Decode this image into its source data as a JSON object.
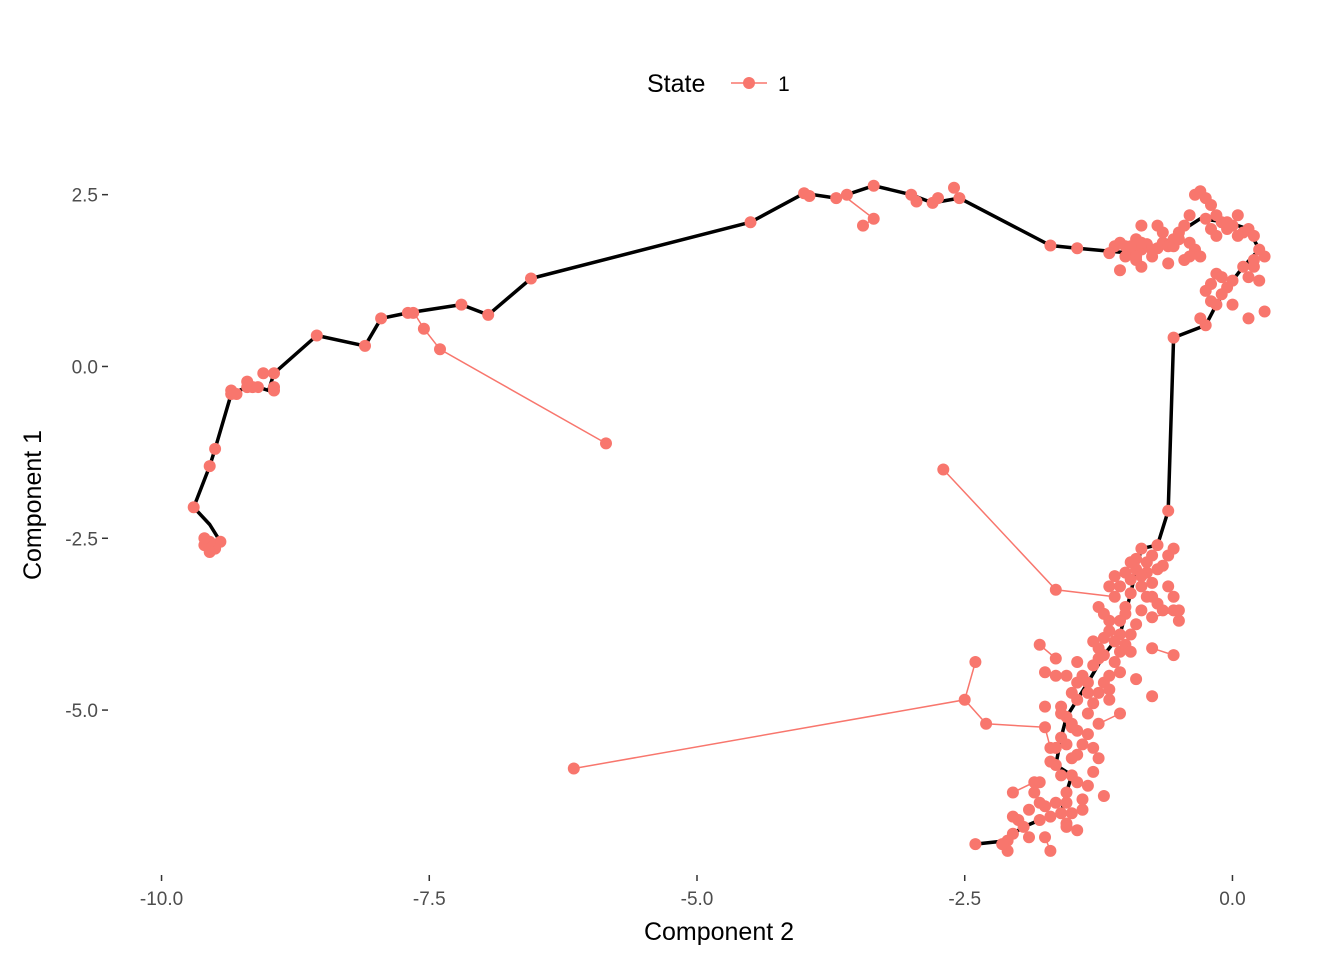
{
  "chart_data": {
    "type": "scatter",
    "xlabel": "Component 2",
    "ylabel": "Component 1",
    "xlim": [
      -10.5,
      0.5
    ],
    "ylim": [
      -7.4,
      3.15
    ],
    "x_ticks": [
      -10.0,
      -7.5,
      -5.0,
      -2.5,
      0.0
    ],
    "x_tick_labels": [
      "-10.0",
      "-7.5",
      "-5.0",
      "-2.5",
      "0.0"
    ],
    "y_ticks": [
      -5.0,
      -2.5,
      0.0,
      2.5
    ],
    "y_tick_labels": [
      "-5.0",
      "-2.5",
      "0.0",
      "2.5"
    ],
    "grid": false,
    "legend": {
      "title": "State",
      "position": "top",
      "entries": [
        {
          "label": "1",
          "color": "#F8766D"
        }
      ]
    },
    "colors": {
      "state_1": "#F8766D",
      "trajectory": "#000000"
    },
    "trajectory": [
      [
        -9.45,
        -2.55
      ],
      [
        -9.55,
        -2.3
      ],
      [
        -9.7,
        -2.05
      ],
      [
        -9.55,
        -1.45
      ],
      [
        -9.5,
        -1.2
      ],
      [
        -9.35,
        -0.4
      ],
      [
        -9.2,
        -0.3
      ],
      [
        -9.1,
        -0.3
      ],
      [
        -9.0,
        -0.35
      ],
      [
        -8.95,
        -0.1
      ],
      [
        -8.55,
        0.45
      ],
      [
        -8.1,
        0.3
      ],
      [
        -7.95,
        0.7
      ],
      [
        -7.7,
        0.78
      ],
      [
        -7.2,
        0.9
      ],
      [
        -6.95,
        0.75
      ],
      [
        -6.55,
        1.28
      ],
      [
        -4.5,
        2.1
      ],
      [
        -4.0,
        2.52
      ],
      [
        -3.7,
        2.45
      ],
      [
        -3.35,
        2.63
      ],
      [
        -3.0,
        2.5
      ],
      [
        -2.8,
        2.38
      ],
      [
        -2.55,
        2.45
      ],
      [
        -1.7,
        1.76
      ],
      [
        -1.45,
        1.72
      ],
      [
        -0.95,
        1.65
      ],
      [
        -0.7,
        1.72
      ],
      [
        -0.5,
        1.95
      ],
      [
        -0.3,
        2.15
      ],
      [
        -0.05,
        2.1
      ],
      [
        0.15,
        2.0
      ],
      [
        0.25,
        1.7
      ],
      [
        0.1,
        1.45
      ],
      [
        -0.05,
        1.15
      ],
      [
        -0.15,
        0.9
      ],
      [
        -0.25,
        0.6
      ],
      [
        -0.55,
        0.42
      ],
      [
        -0.6,
        -2.1
      ],
      [
        -0.7,
        -2.6
      ],
      [
        -0.85,
        -2.65
      ],
      [
        -0.9,
        -2.95
      ],
      [
        -0.95,
        -3.3
      ],
      [
        -1.0,
        -3.6
      ],
      [
        -1.05,
        -3.9
      ],
      [
        -1.2,
        -4.2
      ],
      [
        -1.35,
        -4.6
      ],
      [
        -1.45,
        -4.85
      ],
      [
        -1.55,
        -5.1
      ],
      [
        -1.6,
        -5.4
      ],
      [
        -1.65,
        -5.8
      ],
      [
        -1.5,
        -5.95
      ],
      [
        -1.55,
        -6.2
      ],
      [
        -1.6,
        -6.5
      ],
      [
        -1.8,
        -6.6
      ],
      [
        -1.95,
        -6.7
      ],
      [
        -2.05,
        -6.8
      ],
      [
        -2.1,
        -6.9
      ],
      [
        -2.4,
        -6.95
      ]
    ],
    "branches": [
      [
        [
          -7.65,
          0.8
        ],
        [
          -7.55,
          0.55
        ],
        [
          -7.4,
          0.25
        ],
        [
          -5.85,
          -1.12
        ]
      ],
      [
        [
          -3.6,
          2.45
        ],
        [
          -3.35,
          2.15
        ]
      ],
      [
        [
          -3.35,
          2.15
        ],
        [
          -3.45,
          2.05
        ]
      ],
      [
        [
          -2.7,
          -1.5
        ],
        [
          -1.65,
          -3.25
        ],
        [
          -1.1,
          -3.35
        ]
      ],
      [
        [
          -6.15,
          -5.85
        ],
        [
          -2.5,
          -4.85
        ],
        [
          -2.4,
          -4.3
        ]
      ],
      [
        [
          -2.5,
          -4.85
        ],
        [
          -2.3,
          -5.2
        ],
        [
          -1.75,
          -5.25
        ]
      ],
      [
        [
          -1.75,
          -5.25
        ],
        [
          -1.7,
          -5.55
        ]
      ],
      [
        [
          -1.8,
          -4.05
        ],
        [
          -1.65,
          -4.25
        ]
      ],
      [
        [
          -1.75,
          -4.45
        ],
        [
          -1.55,
          -4.5
        ]
      ],
      [
        [
          -2.05,
          -6.2
        ],
        [
          -1.85,
          -6.05
        ]
      ],
      [
        [
          -1.7,
          -7.05
        ],
        [
          -1.75,
          -6.85
        ]
      ],
      [
        [
          -1.25,
          -5.2
        ],
        [
          -1.05,
          -5.05
        ]
      ],
      [
        [
          -0.75,
          -4.1
        ],
        [
          -0.55,
          -4.2
        ]
      ],
      [
        [
          -0.75,
          -3.65
        ],
        [
          -0.5,
          -3.55
        ]
      ]
    ],
    "points": [
      [
        -9.45,
        -2.55
      ],
      [
        -9.5,
        -2.65
      ],
      [
        -9.55,
        -2.7
      ],
      [
        -9.6,
        -2.6
      ],
      [
        -9.55,
        -2.55
      ],
      [
        -9.6,
        -2.5
      ],
      [
        -9.7,
        -2.05
      ],
      [
        -9.55,
        -1.45
      ],
      [
        -9.5,
        -1.2
      ],
      [
        -9.35,
        -0.4
      ],
      [
        -9.35,
        -0.35
      ],
      [
        -9.3,
        -0.4
      ],
      [
        -9.2,
        -0.3
      ],
      [
        -9.15,
        -0.3
      ],
      [
        -9.1,
        -0.3
      ],
      [
        -9.2,
        -0.22
      ],
      [
        -8.95,
        -0.3
      ],
      [
        -8.95,
        -0.35
      ],
      [
        -9.05,
        -0.1
      ],
      [
        -8.95,
        -0.1
      ],
      [
        -8.55,
        0.45
      ],
      [
        -8.1,
        0.3
      ],
      [
        -7.95,
        0.7
      ],
      [
        -7.7,
        0.78
      ],
      [
        -7.65,
        0.78
      ],
      [
        -7.55,
        0.55
      ],
      [
        -7.4,
        0.25
      ],
      [
        -7.2,
        0.9
      ],
      [
        -6.95,
        0.75
      ],
      [
        -6.55,
        1.28
      ],
      [
        -5.85,
        -1.12
      ],
      [
        -4.5,
        2.1
      ],
      [
        -4.0,
        2.52
      ],
      [
        -3.95,
        2.48
      ],
      [
        -3.7,
        2.45
      ],
      [
        -3.6,
        2.5
      ],
      [
        -3.35,
        2.15
      ],
      [
        -3.45,
        2.05
      ],
      [
        -3.35,
        2.63
      ],
      [
        -3.0,
        2.5
      ],
      [
        -2.95,
        2.4
      ],
      [
        -2.8,
        2.38
      ],
      [
        -2.75,
        2.45
      ],
      [
        -2.6,
        2.6
      ],
      [
        -2.55,
        2.45
      ],
      [
        -1.7,
        1.76
      ],
      [
        -1.45,
        1.72
      ],
      [
        -0.95,
        1.65
      ],
      [
        -0.9,
        1.55
      ],
      [
        -0.85,
        1.7
      ],
      [
        -0.8,
        1.78
      ],
      [
        -0.75,
        1.6
      ],
      [
        -0.7,
        1.72
      ],
      [
        -0.65,
        1.8
      ],
      [
        -0.6,
        1.75
      ],
      [
        -0.55,
        1.85
      ],
      [
        -0.5,
        1.95
      ],
      [
        -0.45,
        2.05
      ],
      [
        -0.4,
        1.8
      ],
      [
        -0.35,
        1.7
      ],
      [
        -0.3,
        1.6
      ],
      [
        -0.25,
        2.15
      ],
      [
        -0.2,
        2.0
      ],
      [
        -0.15,
        1.9
      ],
      [
        -0.1,
        2.1
      ],
      [
        -0.05,
        2.1
      ],
      [
        0.0,
        2.05
      ],
      [
        0.05,
        2.2
      ],
      [
        0.1,
        1.95
      ],
      [
        0.15,
        2.0
      ],
      [
        0.2,
        1.9
      ],
      [
        0.25,
        1.7
      ],
      [
        0.3,
        1.6
      ],
      [
        0.2,
        1.45
      ],
      [
        0.1,
        1.45
      ],
      [
        0.0,
        1.25
      ],
      [
        -0.05,
        1.15
      ],
      [
        -0.1,
        1.05
      ],
      [
        -0.15,
        0.9
      ],
      [
        -0.2,
        1.2
      ],
      [
        -0.15,
        1.35
      ],
      [
        -0.25,
        1.1
      ],
      [
        -0.25,
        0.6
      ],
      [
        -0.3,
        0.7
      ],
      [
        -0.9,
        1.85
      ],
      [
        -0.85,
        2.05
      ],
      [
        -0.7,
        2.05
      ],
      [
        -0.65,
        1.95
      ],
      [
        -0.55,
        1.75
      ],
      [
        -0.5,
        1.85
      ],
      [
        -0.4,
        2.2
      ],
      [
        -0.35,
        2.5
      ],
      [
        -0.3,
        2.55
      ],
      [
        -0.25,
        2.45
      ],
      [
        -0.2,
        2.35
      ],
      [
        -0.15,
        2.2
      ],
      [
        -0.05,
        2.0
      ],
      [
        0.05,
        1.9
      ],
      [
        0.2,
        1.55
      ],
      [
        0.25,
        1.25
      ],
      [
        0.15,
        1.3
      ],
      [
        0.0,
        0.9
      ],
      [
        0.15,
        0.7
      ],
      [
        0.3,
        0.8
      ],
      [
        -0.1,
        1.3
      ],
      [
        -0.2,
        0.95
      ],
      [
        -0.4,
        1.6
      ],
      [
        -0.45,
        1.55
      ],
      [
        -0.6,
        1.5
      ],
      [
        -0.75,
        1.7
      ],
      [
        -0.85,
        1.45
      ],
      [
        -1.0,
        1.6
      ],
      [
        -1.05,
        1.4
      ],
      [
        -1.1,
        1.75
      ],
      [
        -1.15,
        1.65
      ],
      [
        -0.9,
        1.6
      ],
      [
        -1.05,
        1.8
      ],
      [
        -1.0,
        1.75
      ],
      [
        -0.95,
        1.75
      ],
      [
        -0.85,
        1.8
      ],
      [
        -0.55,
        0.42
      ],
      [
        -0.6,
        -2.1
      ],
      [
        -0.7,
        -2.6
      ],
      [
        -0.75,
        -2.75
      ],
      [
        -0.8,
        -2.85
      ],
      [
        -0.85,
        -2.65
      ],
      [
        -0.9,
        -2.8
      ],
      [
        -0.9,
        -2.95
      ],
      [
        -0.95,
        -3.1
      ],
      [
        -1.0,
        -3.0
      ],
      [
        -1.05,
        -3.2
      ],
      [
        -1.1,
        -3.05
      ],
      [
        -0.8,
        -3.0
      ],
      [
        -0.85,
        -3.2
      ],
      [
        -0.75,
        -3.35
      ],
      [
        -0.7,
        -3.45
      ],
      [
        -0.65,
        -3.55
      ],
      [
        -0.55,
        -3.55
      ],
      [
        -0.5,
        -3.7
      ],
      [
        -0.95,
        -3.3
      ],
      [
        -1.0,
        -3.5
      ],
      [
        -1.0,
        -3.6
      ],
      [
        -1.05,
        -3.7
      ],
      [
        -1.15,
        -3.7
      ],
      [
        -1.2,
        -3.6
      ],
      [
        -1.25,
        -3.5
      ],
      [
        -1.05,
        -3.9
      ],
      [
        -1.1,
        -4.0
      ],
      [
        -1.15,
        -3.85
      ],
      [
        -1.2,
        -4.2
      ],
      [
        -1.25,
        -4.1
      ],
      [
        -1.3,
        -4.35
      ],
      [
        -1.35,
        -4.6
      ],
      [
        -1.4,
        -4.5
      ],
      [
        -1.45,
        -4.85
      ],
      [
        -1.5,
        -4.75
      ],
      [
        -1.55,
        -5.1
      ],
      [
        -1.6,
        -5.05
      ],
      [
        -1.6,
        -5.4
      ],
      [
        -1.65,
        -5.55
      ],
      [
        -1.65,
        -5.8
      ],
      [
        -1.5,
        -5.95
      ],
      [
        -1.55,
        -6.2
      ],
      [
        -1.6,
        -6.5
      ],
      [
        -1.65,
        -6.35
      ],
      [
        -1.75,
        -6.4
      ],
      [
        -1.8,
        -6.6
      ],
      [
        -1.95,
        -6.7
      ],
      [
        -2.05,
        -6.8
      ],
      [
        -2.1,
        -6.9
      ],
      [
        -2.1,
        -7.05
      ],
      [
        -2.15,
        -6.95
      ],
      [
        -2.4,
        -6.95
      ],
      [
        -2.0,
        -6.6
      ],
      [
        -2.05,
        -6.55
      ],
      [
        -1.9,
        -6.45
      ],
      [
        -1.85,
        -6.2
      ],
      [
        -1.8,
        -6.35
      ],
      [
        -1.7,
        -6.55
      ],
      [
        -1.55,
        -6.65
      ],
      [
        -1.5,
        -6.5
      ],
      [
        -1.4,
        -6.3
      ],
      [
        -1.35,
        -6.1
      ],
      [
        -1.3,
        -5.9
      ],
      [
        -1.25,
        -5.7
      ],
      [
        -1.3,
        -5.55
      ],
      [
        -1.4,
        -5.5
      ],
      [
        -1.45,
        -5.3
      ],
      [
        -1.5,
        -5.2
      ],
      [
        -1.35,
        -5.05
      ],
      [
        -1.3,
        -4.9
      ],
      [
        -1.25,
        -4.75
      ],
      [
        -1.2,
        -4.6
      ],
      [
        -1.15,
        -4.5
      ],
      [
        -1.1,
        -4.3
      ],
      [
        -1.05,
        -4.15
      ],
      [
        -1.0,
        -4.05
      ],
      [
        -0.95,
        -3.9
      ],
      [
        -0.9,
        -3.75
      ],
      [
        -0.85,
        -3.55
      ],
      [
        -0.8,
        -3.35
      ],
      [
        -0.75,
        -3.15
      ],
      [
        -0.7,
        -2.95
      ],
      [
        -0.65,
        -2.9
      ],
      [
        -0.6,
        -2.75
      ],
      [
        -0.55,
        -2.65
      ],
      [
        -0.95,
        -2.85
      ],
      [
        -0.85,
        -3.05
      ],
      [
        -0.6,
        -3.2
      ],
      [
        -0.55,
        -3.35
      ],
      [
        -1.15,
        -3.2
      ],
      [
        -1.1,
        -3.35
      ],
      [
        -1.65,
        -3.25
      ],
      [
        -2.7,
        -1.5
      ],
      [
        -1.2,
        -3.95
      ],
      [
        -1.3,
        -4.0
      ],
      [
        -1.25,
        -4.25
      ],
      [
        -1.45,
        -4.3
      ],
      [
        -1.65,
        -4.5
      ],
      [
        -1.75,
        -4.45
      ],
      [
        -1.55,
        -4.5
      ],
      [
        -1.8,
        -4.05
      ],
      [
        -1.65,
        -4.25
      ],
      [
        -1.45,
        -4.6
      ],
      [
        -1.35,
        -4.75
      ],
      [
        -1.15,
        -4.85
      ],
      [
        -1.15,
        -4.7
      ],
      [
        -1.05,
        -4.45
      ],
      [
        -0.95,
        -4.15
      ],
      [
        -0.75,
        -4.1
      ],
      [
        -0.55,
        -4.2
      ],
      [
        -0.75,
        -3.65
      ],
      [
        -0.5,
        -3.55
      ],
      [
        -0.9,
        -4.55
      ],
      [
        -0.75,
        -4.8
      ],
      [
        -1.25,
        -5.2
      ],
      [
        -1.05,
        -5.05
      ],
      [
        -1.35,
        -5.35
      ],
      [
        -1.55,
        -5.5
      ],
      [
        -1.7,
        -5.55
      ],
      [
        -1.75,
        -5.25
      ],
      [
        -1.75,
        -4.95
      ],
      [
        -1.6,
        -4.95
      ],
      [
        -1.5,
        -5.25
      ],
      [
        -1.7,
        -5.75
      ],
      [
        -1.6,
        -5.95
      ],
      [
        -1.45,
        -6.05
      ],
      [
        -1.8,
        -6.05
      ],
      [
        -1.85,
        -6.05
      ],
      [
        -2.05,
        -6.2
      ],
      [
        -1.9,
        -6.85
      ],
      [
        -1.75,
        -6.85
      ],
      [
        -1.7,
        -7.05
      ],
      [
        -1.45,
        -6.75
      ],
      [
        -1.55,
        -6.7
      ],
      [
        -2.3,
        -5.2
      ],
      [
        -2.5,
        -4.85
      ],
      [
        -2.4,
        -4.3
      ],
      [
        -6.15,
        -5.85
      ],
      [
        -1.45,
        -5.65
      ],
      [
        -1.5,
        -5.7
      ],
      [
        -1.55,
        -6.35
      ],
      [
        -1.4,
        -6.45
      ],
      [
        -1.2,
        -6.25
      ]
    ]
  }
}
